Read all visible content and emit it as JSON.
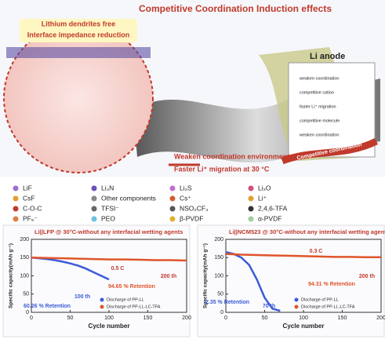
{
  "header": {
    "title": "Competitive Coordination Induction effects",
    "badge_1": "Lithium dendrites free",
    "badge_2": "Interface impedance reduction",
    "anode": "Li anode",
    "effect_1": "Weaken coordination environment",
    "effect_2": "Faster Li⁺ migration at 30 °C"
  },
  "inset": {
    "notes": [
      "weaken coordination",
      "competitive cation",
      "faster Li⁺ migration",
      "competitive molecule",
      "weaken coordination"
    ],
    "banner": "Competitive coordination"
  },
  "legend": {
    "items": [
      "LiF",
      "Li₃N",
      "Li₂S",
      "Li₂O",
      "CsF",
      "Other components",
      "Cs⁺",
      "Li⁺",
      "C-O-C",
      "TFSI⁻",
      "NSO₂CF₃",
      "2,4,6-TFA",
      "PF₆⁻",
      "PEO",
      "β-PVDF",
      "α-PVDF"
    ]
  },
  "chart_data": [
    {
      "type": "line",
      "title": "Li||LFP @ 30°C-without any interfacial wetting agents",
      "x_label": "Cycle number",
      "y_label": "Specific capacity(mAh g⁻¹)",
      "xlim": [
        0,
        200
      ],
      "xticks": [
        0,
        50,
        100,
        150,
        200
      ],
      "ylim": [
        0,
        200
      ],
      "yticks": [
        0,
        50,
        100,
        150,
        200
      ],
      "series": [
        {
          "name": "Discharge of PP-LL",
          "color": "#3b5bd6",
          "x": [
            0,
            10,
            20,
            30,
            40,
            50,
            60,
            70,
            80,
            90,
            100
          ],
          "values": [
            150,
            148,
            146,
            143,
            139,
            134,
            128,
            120,
            110,
            100,
            90
          ]
        },
        {
          "name": "Discharge of PP-LL-LC-TFA",
          "color": "#e0552a",
          "x": [
            0,
            20,
            40,
            60,
            80,
            100,
            120,
            140,
            160,
            180,
            200
          ],
          "values": [
            150,
            149,
            148,
            147,
            146,
            145,
            145,
            144,
            143,
            143,
            142
          ]
        }
      ],
      "annotations": [
        "0.5 C",
        "100 th",
        "60.26 % Retention",
        "94.65 % Retention",
        "200 th"
      ]
    },
    {
      "type": "line",
      "title": "Li||NCM523 @ 30°C-without any interfacial wetting agents",
      "x_label": "Cycle number",
      "y_label": "Specific capacity(mAh g⁻¹)",
      "xlim": [
        0,
        200
      ],
      "xticks": [
        0,
        50,
        100,
        150,
        200
      ],
      "ylim": [
        0,
        200
      ],
      "yticks": [
        0,
        50,
        100,
        150,
        200
      ],
      "series": [
        {
          "name": "Discharge of PP-LL",
          "color": "#3b5bd6",
          "x": [
            0,
            10,
            20,
            30,
            40,
            50,
            60,
            70
          ],
          "values": [
            165,
            160,
            150,
            130,
            90,
            40,
            10,
            4
          ]
        },
        {
          "name": "Discharge of PP-LL-LC-TFA",
          "color": "#e0552a",
          "x": [
            0,
            20,
            40,
            60,
            80,
            100,
            120,
            140,
            160,
            180,
            200
          ],
          "values": [
            160,
            158,
            157,
            156,
            155,
            154,
            153,
            152,
            152,
            151,
            151
          ]
        }
      ],
      "annotations": [
        "0.3 C",
        "94.31 % Retention",
        "200 th",
        "2.35 % Retention",
        "70 th"
      ]
    }
  ]
}
